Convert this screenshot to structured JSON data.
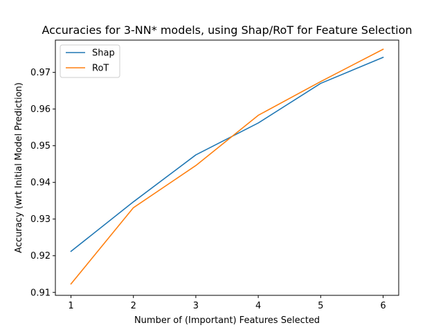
{
  "chart_data": {
    "type": "line",
    "title": "Accuracies for 3-NN* models, using Shap/RoT for Feature Selection",
    "xlabel": "Number of (Important) Features Selected",
    "ylabel": "Accuracy (wrt Initial Model Prediction)",
    "x": [
      1,
      2,
      3,
      4,
      5,
      6
    ],
    "xticks": [
      "1",
      "2",
      "3",
      "4",
      "5",
      "6"
    ],
    "yticks": [
      "0.91",
      "0.92",
      "0.93",
      "0.94",
      "0.95",
      "0.96",
      "0.97"
    ],
    "xlim": [
      0.75,
      6.25
    ],
    "ylim": [
      0.9092,
      0.9788
    ],
    "grid": false,
    "legend_position": "top-left",
    "series": [
      {
        "name": "Shap",
        "color": "#1f77b4",
        "values": [
          0.9212,
          0.9347,
          0.9475,
          0.9562,
          0.967,
          0.9741
        ]
      },
      {
        "name": "RoT",
        "color": "#ff7f0e",
        "values": [
          0.9123,
          0.9331,
          0.9446,
          0.9583,
          0.9675,
          0.9763
        ]
      }
    ]
  }
}
